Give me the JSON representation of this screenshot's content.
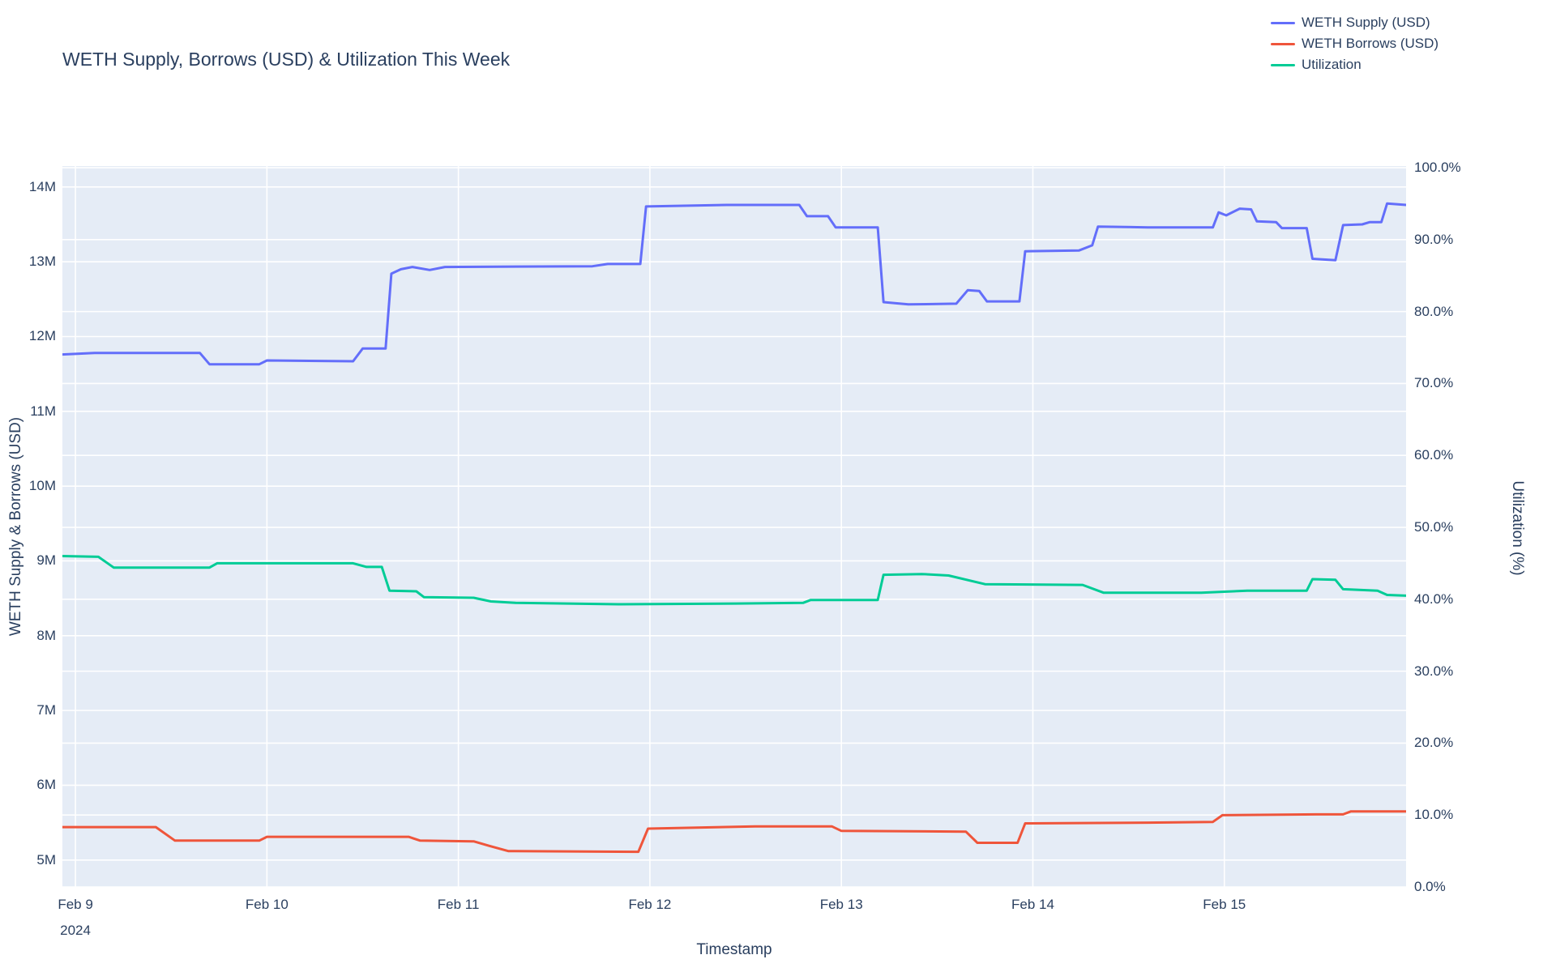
{
  "title": "WETH Supply, Borrows (USD) & Utilization This Week",
  "colors": {
    "supply": "#636efa",
    "borrows": "#ef553b",
    "utilization": "#00cc96",
    "plot_bg": "#e5ecf6",
    "grid": "#ffffff",
    "text": "#2a3f5f"
  },
  "legend": {
    "items": [
      {
        "label": "WETH Supply (USD)",
        "color": "#636efa"
      },
      {
        "label": "WETH Borrows (USD)",
        "color": "#ef553b"
      },
      {
        "label": "Utilization",
        "color": "#00cc96"
      }
    ]
  },
  "axes": {
    "x": {
      "title": "Timestamp",
      "range_days": [
        -0.068,
        6.949
      ],
      "ticks": [
        {
          "day": 0,
          "label": "Feb 9",
          "sublabel": "2024"
        },
        {
          "day": 1,
          "label": "Feb 10",
          "sublabel": ""
        },
        {
          "day": 2,
          "label": "Feb 11",
          "sublabel": ""
        },
        {
          "day": 3,
          "label": "Feb 12",
          "sublabel": ""
        },
        {
          "day": 4,
          "label": "Feb 13",
          "sublabel": ""
        },
        {
          "day": 5,
          "label": "Feb 14",
          "sublabel": ""
        },
        {
          "day": 6,
          "label": "Feb 15",
          "sublabel": ""
        }
      ]
    },
    "y_left": {
      "title": "WETH Supply & Borrows (USD)",
      "range_millions": [
        4.64,
        14.28
      ],
      "ticks": [
        {
          "value": 5,
          "label": "5M"
        },
        {
          "value": 6,
          "label": "6M"
        },
        {
          "value": 7,
          "label": "7M"
        },
        {
          "value": 8,
          "label": "8M"
        },
        {
          "value": 9,
          "label": "9M"
        },
        {
          "value": 10,
          "label": "10M"
        },
        {
          "value": 11,
          "label": "11M"
        },
        {
          "value": 12,
          "label": "12M"
        },
        {
          "value": 13,
          "label": "13M"
        },
        {
          "value": 14,
          "label": "14M"
        }
      ]
    },
    "y_right": {
      "title": "Utilization (%)",
      "range_percent": [
        0,
        100.23
      ],
      "ticks": [
        {
          "value": 0,
          "label": "0.0%"
        },
        {
          "value": 10,
          "label": "10.0%"
        },
        {
          "value": 20,
          "label": "20.0%"
        },
        {
          "value": 30,
          "label": "30.0%"
        },
        {
          "value": 40,
          "label": "40.0%"
        },
        {
          "value": 50,
          "label": "50.0%"
        },
        {
          "value": 60,
          "label": "60.0%"
        },
        {
          "value": 70,
          "label": "70.0%"
        },
        {
          "value": 80,
          "label": "80.0%"
        },
        {
          "value": 90,
          "label": "90.0%"
        },
        {
          "value": 100,
          "label": "100.0%"
        }
      ]
    }
  },
  "chart_data": {
    "type": "line",
    "title": "WETH Supply, Borrows (USD) & Utilization This Week",
    "xlabel": "Timestamp",
    "x_unit": "days since Feb 9 2024 00:00",
    "grid": true,
    "legend_position": "top-right",
    "series": [
      {
        "name": "WETH Supply (USD)",
        "axis": "left",
        "unit": "millions USD",
        "color": "#636efa",
        "points": [
          [
            -0.07,
            11.76
          ],
          [
            0.1,
            11.78
          ],
          [
            0.65,
            11.78
          ],
          [
            0.7,
            11.63
          ],
          [
            0.96,
            11.63
          ],
          [
            1.0,
            11.68
          ],
          [
            1.45,
            11.67
          ],
          [
            1.5,
            11.84
          ],
          [
            1.62,
            11.84
          ],
          [
            1.65,
            12.84
          ],
          [
            1.7,
            12.9
          ],
          [
            1.76,
            12.93
          ],
          [
            1.85,
            12.89
          ],
          [
            1.93,
            12.93
          ],
          [
            2.7,
            12.94
          ],
          [
            2.78,
            12.97
          ],
          [
            2.95,
            12.97
          ],
          [
            2.98,
            13.74
          ],
          [
            3.4,
            13.76
          ],
          [
            3.78,
            13.76
          ],
          [
            3.82,
            13.61
          ],
          [
            3.93,
            13.61
          ],
          [
            3.97,
            13.46
          ],
          [
            4.19,
            13.46
          ],
          [
            4.22,
            12.46
          ],
          [
            4.35,
            12.43
          ],
          [
            4.6,
            12.44
          ],
          [
            4.66,
            12.62
          ],
          [
            4.72,
            12.61
          ],
          [
            4.76,
            12.47
          ],
          [
            4.93,
            12.47
          ],
          [
            4.96,
            13.14
          ],
          [
            5.24,
            13.15
          ],
          [
            5.31,
            13.22
          ],
          [
            5.34,
            13.47
          ],
          [
            5.6,
            13.46
          ],
          [
            5.94,
            13.46
          ],
          [
            5.97,
            13.66
          ],
          [
            6.01,
            13.62
          ],
          [
            6.08,
            13.71
          ],
          [
            6.14,
            13.7
          ],
          [
            6.17,
            13.54
          ],
          [
            6.27,
            13.53
          ],
          [
            6.3,
            13.45
          ],
          [
            6.43,
            13.45
          ],
          [
            6.46,
            13.04
          ],
          [
            6.58,
            13.02
          ],
          [
            6.62,
            13.49
          ],
          [
            6.72,
            13.5
          ],
          [
            6.76,
            13.53
          ],
          [
            6.82,
            13.53
          ],
          [
            6.85,
            13.78
          ],
          [
            6.95,
            13.76
          ]
        ]
      },
      {
        "name": "WETH Borrows (USD)",
        "axis": "left",
        "unit": "millions USD",
        "color": "#ef553b",
        "points": [
          [
            -0.07,
            5.44
          ],
          [
            0.42,
            5.44
          ],
          [
            0.52,
            5.26
          ],
          [
            0.96,
            5.26
          ],
          [
            1.0,
            5.31
          ],
          [
            1.74,
            5.31
          ],
          [
            1.8,
            5.26
          ],
          [
            2.08,
            5.25
          ],
          [
            2.16,
            5.19
          ],
          [
            2.26,
            5.12
          ],
          [
            2.94,
            5.11
          ],
          [
            2.99,
            5.42
          ],
          [
            3.55,
            5.45
          ],
          [
            3.95,
            5.45
          ],
          [
            4.0,
            5.39
          ],
          [
            4.65,
            5.38
          ],
          [
            4.71,
            5.23
          ],
          [
            4.92,
            5.23
          ],
          [
            4.96,
            5.49
          ],
          [
            5.6,
            5.5
          ],
          [
            5.94,
            5.51
          ],
          [
            5.99,
            5.6
          ],
          [
            6.48,
            5.61
          ],
          [
            6.62,
            5.61
          ],
          [
            6.66,
            5.65
          ],
          [
            6.95,
            5.65
          ]
        ]
      },
      {
        "name": "Utilization",
        "axis": "right",
        "unit": "percent",
        "color": "#00cc96",
        "points": [
          [
            -0.07,
            46.0
          ],
          [
            0.12,
            45.9
          ],
          [
            0.2,
            44.4
          ],
          [
            0.7,
            44.4
          ],
          [
            0.74,
            45.0
          ],
          [
            1.45,
            45.0
          ],
          [
            1.52,
            44.5
          ],
          [
            1.6,
            44.5
          ],
          [
            1.64,
            41.2
          ],
          [
            1.78,
            41.1
          ],
          [
            1.82,
            40.3
          ],
          [
            2.08,
            40.2
          ],
          [
            2.17,
            39.7
          ],
          [
            2.3,
            39.5
          ],
          [
            2.85,
            39.3
          ],
          [
            3.45,
            39.4
          ],
          [
            3.8,
            39.5
          ],
          [
            3.84,
            39.9
          ],
          [
            4.19,
            39.9
          ],
          [
            4.22,
            43.4
          ],
          [
            4.42,
            43.5
          ],
          [
            4.56,
            43.3
          ],
          [
            4.75,
            42.1
          ],
          [
            5.26,
            42.0
          ],
          [
            5.37,
            40.9
          ],
          [
            5.88,
            40.9
          ],
          [
            6.12,
            41.2
          ],
          [
            6.43,
            41.2
          ],
          [
            6.46,
            42.8
          ],
          [
            6.58,
            42.7
          ],
          [
            6.62,
            41.4
          ],
          [
            6.8,
            41.2
          ],
          [
            6.85,
            40.6
          ],
          [
            6.95,
            40.5
          ]
        ]
      }
    ]
  }
}
